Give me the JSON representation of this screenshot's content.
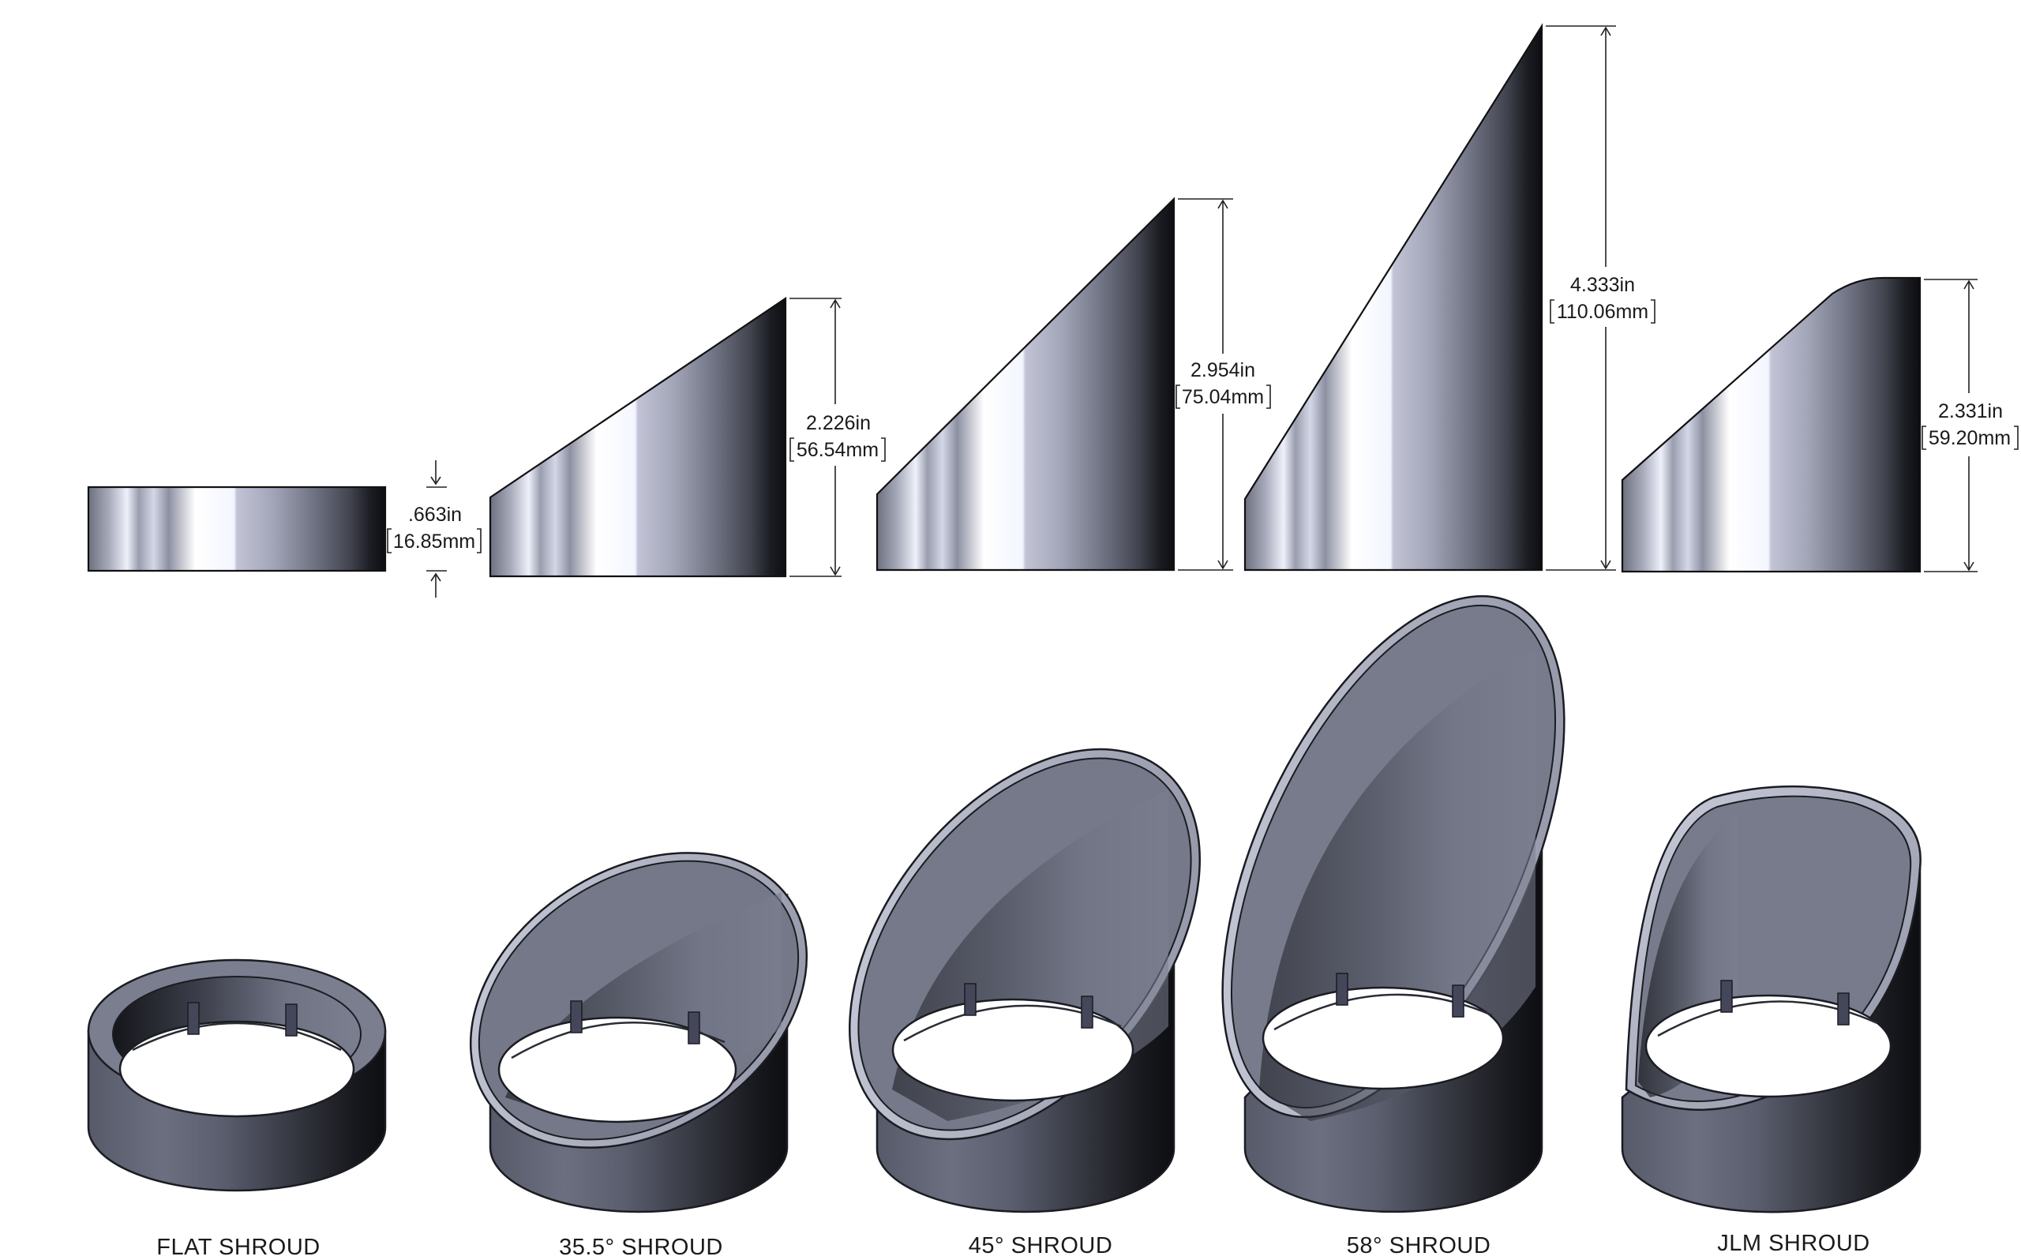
{
  "shrouds": [
    {
      "id": "flat",
      "caption": "FLAT SHROUD",
      "dim_in": ".663in",
      "dim_mm": "16.85mm"
    },
    {
      "id": "35-5",
      "caption": "35.5° SHROUD",
      "dim_in": "2.226in",
      "dim_mm": "56.54mm"
    },
    {
      "id": "45",
      "caption": "45° SHROUD",
      "dim_in": "2.954in",
      "dim_mm": "75.04mm"
    },
    {
      "id": "58",
      "caption": "58° SHROUD",
      "dim_in": "4.333in",
      "dim_mm": "110.06mm"
    },
    {
      "id": "jlm",
      "caption": "JLM SHROUD",
      "dim_in": "2.331in",
      "dim_mm": "59.20mm"
    }
  ]
}
